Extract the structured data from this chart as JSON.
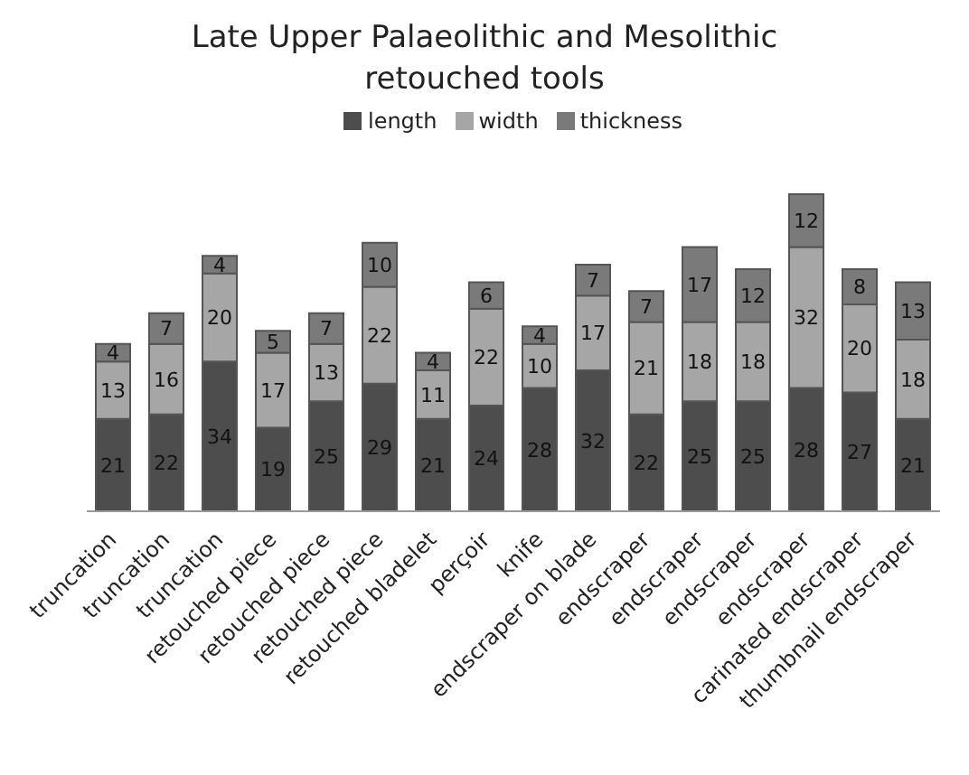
{
  "chart_data": {
    "type": "bar",
    "title": "Late Upper Palaeolithic and Mesolithic retouched tools",
    "stacked": true,
    "data_labels": true,
    "legend": "top",
    "tick_labels": "x",
    "categories": [
      "truncation",
      "truncation",
      "truncation",
      "retouched piece",
      "retouched piece",
      "retouched piece",
      "retouched bladelet",
      "perçoir",
      "knife",
      "endscraper on blade",
      "endscraper",
      "endscraper",
      "endscraper",
      "endscraper",
      "carinated endscraper",
      "thumbnail endscraper"
    ],
    "series": [
      {
        "name": "length",
        "color": "#4d4d4d",
        "values": [
          21,
          22,
          34,
          19,
          25,
          29,
          21,
          24,
          28,
          32,
          22,
          25,
          25,
          28,
          27,
          21
        ]
      },
      {
        "name": "width",
        "color": "#a6a6a6",
        "values": [
          13,
          16,
          20,
          17,
          13,
          22,
          11,
          22,
          10,
          17,
          21,
          18,
          18,
          32,
          20,
          18
        ]
      },
      {
        "name": "thickness",
        "color": "#7a7a7a",
        "values": [
          4,
          7,
          4,
          5,
          7,
          10,
          4,
          6,
          4,
          7,
          7,
          17,
          12,
          12,
          8,
          13
        ]
      }
    ]
  }
}
